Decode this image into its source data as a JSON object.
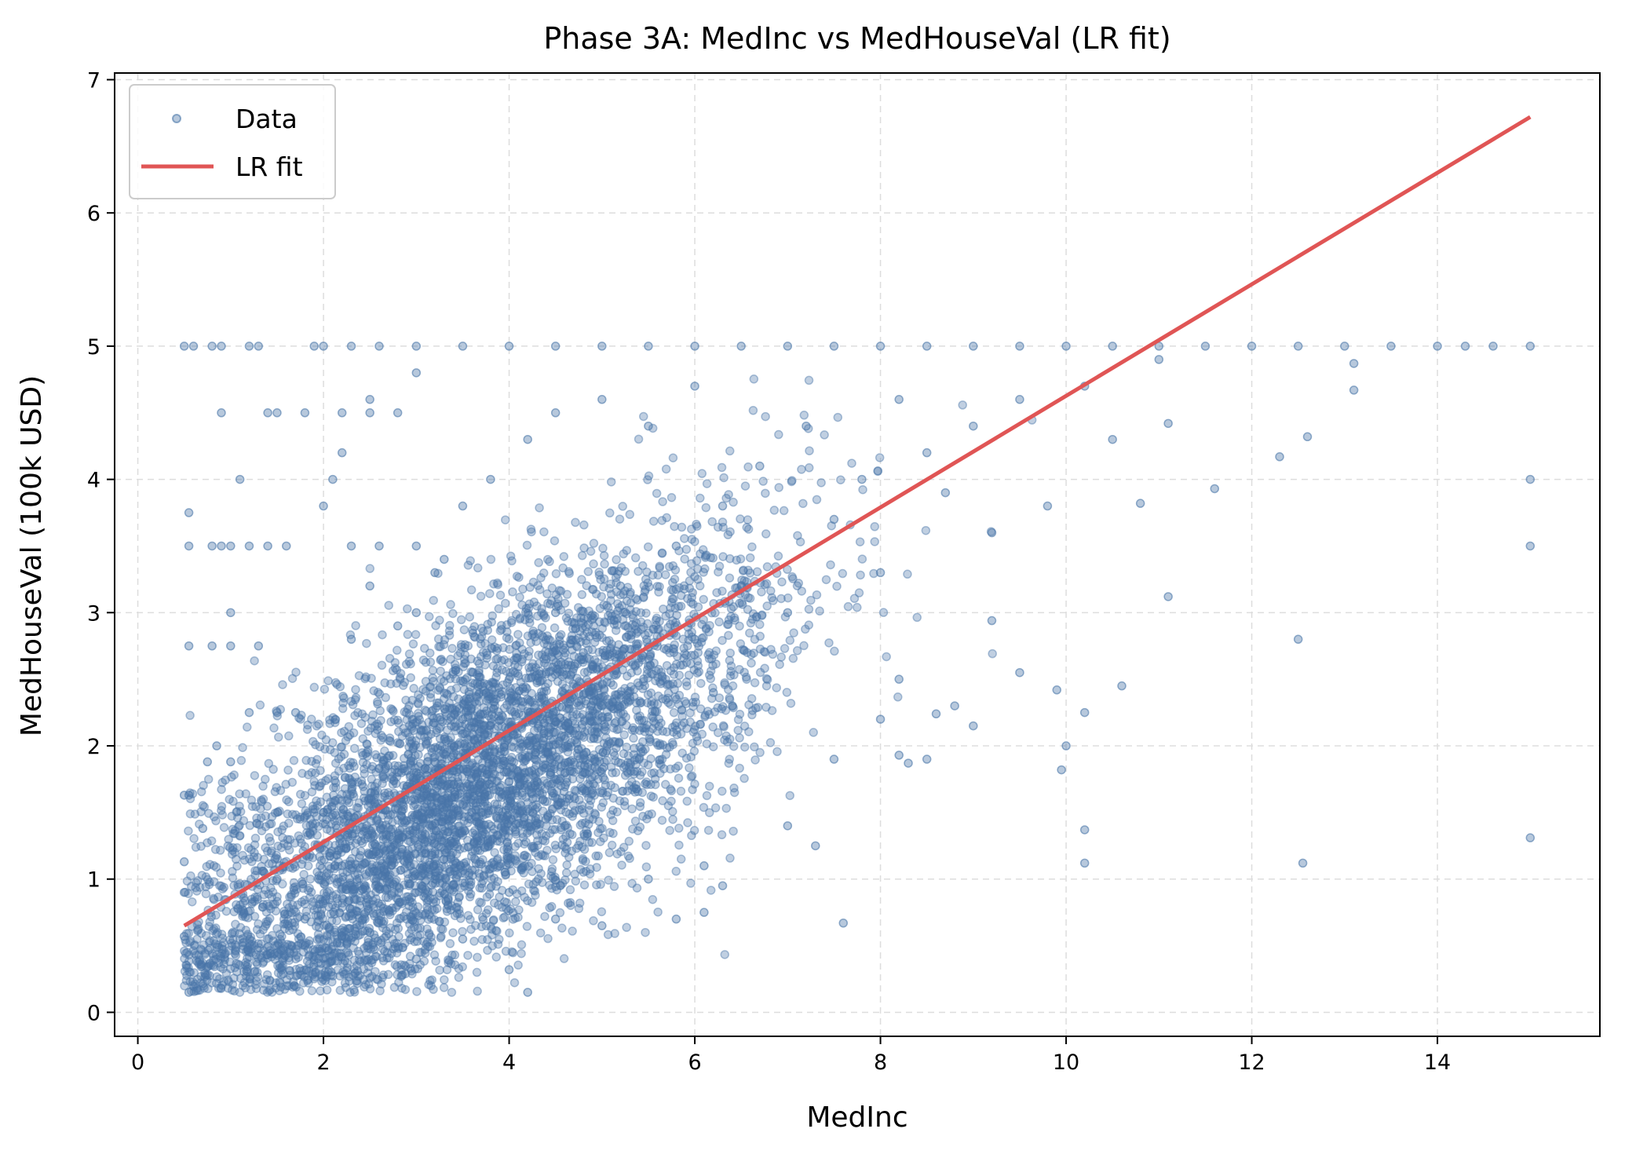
{
  "chart_data": {
    "type": "scatter",
    "title": "Phase 3A: MedInc vs MedHouseVal (LR fit)",
    "xlabel": "MedInc",
    "ylabel": "MedHouseVal (100k USD)",
    "xlim": [
      -0.25,
      15.75
    ],
    "ylim": [
      -0.18,
      7.05
    ],
    "xticks": [
      0,
      2,
      4,
      6,
      8,
      10,
      12,
      14
    ],
    "yticks": [
      0,
      1,
      2,
      3,
      4,
      5,
      6,
      7
    ],
    "xtick_labels": [
      "0",
      "2",
      "4",
      "6",
      "8",
      "10",
      "12",
      "14"
    ],
    "ytick_labels": [
      "0",
      "1",
      "2",
      "3",
      "4",
      "5",
      "6",
      "7"
    ],
    "grid": true,
    "legend_position": "top-left",
    "colors": {
      "data": "#4a76a8",
      "fit": "#e05555"
    },
    "series": [
      {
        "name": "Data",
        "kind": "scatter",
        "note_points": "representative sample of visible points",
        "points": [
          [
            0.5,
            5.0
          ],
          [
            0.6,
            5.0
          ],
          [
            0.8,
            5.0
          ],
          [
            0.9,
            5.0
          ],
          [
            1.2,
            5.0
          ],
          [
            1.3,
            5.0
          ],
          [
            1.9,
            5.0
          ],
          [
            2.0,
            5.0
          ],
          [
            2.3,
            5.0
          ],
          [
            2.6,
            5.0
          ],
          [
            3.0,
            5.0
          ],
          [
            3.5,
            5.0
          ],
          [
            4.0,
            5.0
          ],
          [
            4.5,
            5.0
          ],
          [
            5.0,
            5.0
          ],
          [
            5.5,
            5.0
          ],
          [
            6.0,
            5.0
          ],
          [
            6.5,
            5.0
          ],
          [
            7.0,
            5.0
          ],
          [
            7.5,
            5.0
          ],
          [
            8.0,
            5.0
          ],
          [
            8.5,
            5.0
          ],
          [
            9.0,
            5.0
          ],
          [
            9.5,
            5.0
          ],
          [
            10.0,
            5.0
          ],
          [
            10.5,
            5.0
          ],
          [
            11.0,
            5.0
          ],
          [
            11.5,
            5.0
          ],
          [
            12.0,
            5.0
          ],
          [
            12.5,
            5.0
          ],
          [
            13.0,
            5.0
          ],
          [
            13.5,
            5.0
          ],
          [
            14.0,
            5.0
          ],
          [
            14.3,
            5.0
          ],
          [
            14.6,
            5.0
          ],
          [
            15.0,
            5.0
          ],
          [
            0.55,
            3.75
          ],
          [
            0.55,
            3.5
          ],
          [
            0.55,
            2.75
          ],
          [
            0.5,
            1.63
          ],
          [
            0.55,
            1.63
          ],
          [
            0.5,
            1.13
          ],
          [
            0.5,
            0.9
          ],
          [
            0.5,
            0.57
          ],
          [
            0.55,
            0.15
          ],
          [
            0.9,
            4.5
          ],
          [
            1.1,
            4.0
          ],
          [
            0.8,
            3.5
          ],
          [
            0.9,
            3.5
          ],
          [
            1.0,
            3.5
          ],
          [
            1.2,
            3.5
          ],
          [
            1.4,
            3.5
          ],
          [
            1.6,
            3.5
          ],
          [
            1.4,
            4.5
          ],
          [
            1.5,
            4.5
          ],
          [
            1.8,
            4.5
          ],
          [
            2.2,
            4.5
          ],
          [
            2.5,
            4.5
          ],
          [
            2.8,
            4.5
          ],
          [
            2.3,
            3.5
          ],
          [
            2.6,
            3.5
          ],
          [
            3.0,
            3.5
          ],
          [
            1.0,
            3.0
          ],
          [
            1.0,
            2.75
          ],
          [
            0.8,
            2.75
          ],
          [
            1.3,
            2.75
          ],
          [
            0.85,
            2.0
          ],
          [
            1.0,
            1.88
          ],
          [
            0.75,
            1.88
          ],
          [
            0.7,
            1.38
          ],
          [
            1.2,
            2.25
          ],
          [
            1.5,
            2.25
          ],
          [
            1.7,
            2.25
          ],
          [
            2.0,
            3.8
          ],
          [
            2.1,
            4.0
          ],
          [
            2.2,
            4.2
          ],
          [
            2.5,
            4.6
          ],
          [
            3.0,
            4.8
          ],
          [
            3.2,
            3.3
          ],
          [
            1.5,
            0.5
          ],
          [
            1.5,
            1.0
          ],
          [
            1.8,
            0.7
          ],
          [
            2.0,
            1.5
          ],
          [
            2.2,
            1.1
          ],
          [
            2.5,
            0.6
          ],
          [
            2.8,
            1.3
          ],
          [
            3.0,
            1.8
          ],
          [
            3.2,
            1.0
          ],
          [
            3.5,
            2.2
          ],
          [
            3.7,
            1.5
          ],
          [
            4.0,
            2.5
          ],
          [
            4.0,
            0.9
          ],
          [
            4.3,
            2.0
          ],
          [
            4.5,
            3.0
          ],
          [
            4.6,
            1.4
          ],
          [
            4.8,
            2.7
          ],
          [
            5.0,
            2.3
          ],
          [
            5.2,
            3.2
          ],
          [
            5.4,
            1.9
          ],
          [
            5.5,
            2.6
          ],
          [
            5.8,
            3.5
          ],
          [
            6.0,
            2.8
          ],
          [
            6.2,
            2.4
          ],
          [
            6.3,
            3.8
          ],
          [
            6.5,
            3.2
          ],
          [
            6.7,
            4.1
          ],
          [
            7.0,
            3.0
          ],
          [
            7.2,
            4.4
          ],
          [
            7.5,
            3.7
          ],
          [
            7.8,
            4.0
          ],
          [
            8.0,
            3.3
          ],
          [
            8.2,
            4.6
          ],
          [
            8.5,
            4.2
          ],
          [
            8.7,
            3.9
          ],
          [
            9.0,
            4.4
          ],
          [
            9.2,
            3.6
          ],
          [
            9.5,
            4.6
          ],
          [
            9.8,
            3.8
          ],
          [
            10.2,
            4.7
          ],
          [
            10.5,
            4.3
          ],
          [
            11.0,
            4.9
          ],
          [
            2.3,
            2.8
          ],
          [
            2.5,
            3.2
          ],
          [
            2.8,
            2.9
          ],
          [
            3.0,
            3.0
          ],
          [
            3.3,
            3.4
          ],
          [
            3.5,
            3.8
          ],
          [
            3.8,
            4.0
          ],
          [
            4.2,
            4.3
          ],
          [
            4.5,
            4.5
          ],
          [
            5.0,
            4.6
          ],
          [
            5.5,
            4.4
          ],
          [
            6.0,
            4.7
          ],
          [
            3.0,
            0.4
          ],
          [
            3.5,
            0.55
          ],
          [
            4.0,
            0.32
          ],
          [
            4.2,
            0.15
          ],
          [
            4.5,
            0.7
          ],
          [
            5.0,
            0.65
          ],
          [
            5.5,
            1.0
          ],
          [
            5.8,
            0.7
          ],
          [
            6.1,
            1.1
          ],
          [
            6.3,
            0.95
          ],
          [
            6.1,
            0.75
          ],
          [
            7.6,
            0.67
          ],
          [
            7.0,
            1.4
          ],
          [
            7.3,
            1.25
          ],
          [
            7.5,
            1.9
          ],
          [
            8.0,
            2.2
          ],
          [
            8.2,
            2.5
          ],
          [
            8.5,
            1.9
          ],
          [
            8.8,
            2.3
          ],
          [
            9.0,
            2.15
          ],
          [
            9.5,
            2.55
          ],
          [
            9.9,
            2.42
          ],
          [
            10.0,
            2.0
          ],
          [
            9.95,
            1.82
          ],
          [
            10.2,
            2.25
          ],
          [
            10.2,
            1.37
          ],
          [
            10.2,
            1.12
          ],
          [
            10.6,
            2.45
          ],
          [
            10.8,
            3.82
          ],
          [
            11.1,
            3.12
          ],
          [
            11.1,
            4.42
          ],
          [
            11.6,
            3.93
          ],
          [
            12.3,
            4.17
          ],
          [
            12.6,
            4.32
          ],
          [
            12.5,
            2.8
          ],
          [
            12.55,
            1.12
          ],
          [
            13.1,
            4.67
          ],
          [
            13.1,
            4.87
          ],
          [
            9.2,
            2.94
          ],
          [
            8.6,
            2.24
          ],
          [
            8.2,
            1.93
          ],
          [
            8.3,
            1.87
          ],
          [
            15.0,
            4.0
          ],
          [
            15.0,
            3.5
          ],
          [
            15.0,
            1.31
          ]
        ]
      },
      {
        "name": "LR fit",
        "kind": "line",
        "points": [
          [
            0.5,
            0.65
          ],
          [
            15.0,
            6.72
          ]
        ]
      }
    ]
  }
}
